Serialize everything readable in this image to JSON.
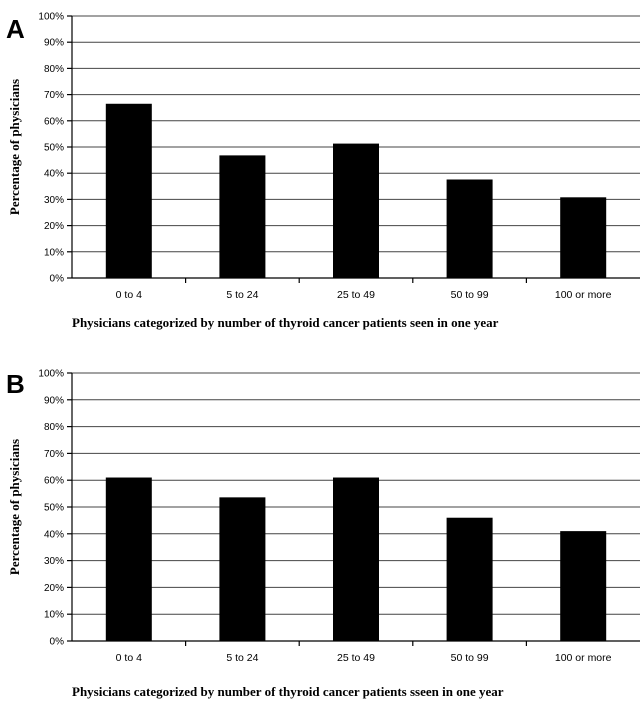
{
  "chart_data": [
    {
      "panel": "A",
      "type": "bar",
      "categories": [
        "0 to 4",
        "5 to 24",
        "25 to 49",
        "50 to 99",
        "100 or more"
      ],
      "values": [
        66.5,
        46.8,
        51.3,
        37.6,
        30.8
      ],
      "xlabel": "Physicians categorized by number of thyroid cancer patients seen in one year",
      "ylabel": "Percentage of physicians",
      "ylim": [
        0,
        100
      ],
      "yticks": [
        "0%",
        "10%",
        "20%",
        "30%",
        "40%",
        "50%",
        "60%",
        "70%",
        "80%",
        "90%",
        "100%"
      ],
      "grid": true,
      "bar_color": "#000000"
    },
    {
      "panel": "B",
      "type": "bar",
      "categories": [
        "0 to 4",
        "5 to 24",
        "25 to 49",
        "50 to 99",
        "100 or more"
      ],
      "values": [
        61.0,
        53.6,
        61.0,
        46.0,
        41.0
      ],
      "xlabel": "Physicians categorized by number of thyroid cancer patients sseen in one year",
      "ylabel": "Percentage of physicians",
      "ylim": [
        0,
        100
      ],
      "yticks": [
        "0%",
        "10%",
        "20%",
        "30%",
        "40%",
        "50%",
        "60%",
        "70%",
        "80%",
        "90%",
        "100%"
      ],
      "grid": true,
      "bar_color": "#000000"
    }
  ]
}
